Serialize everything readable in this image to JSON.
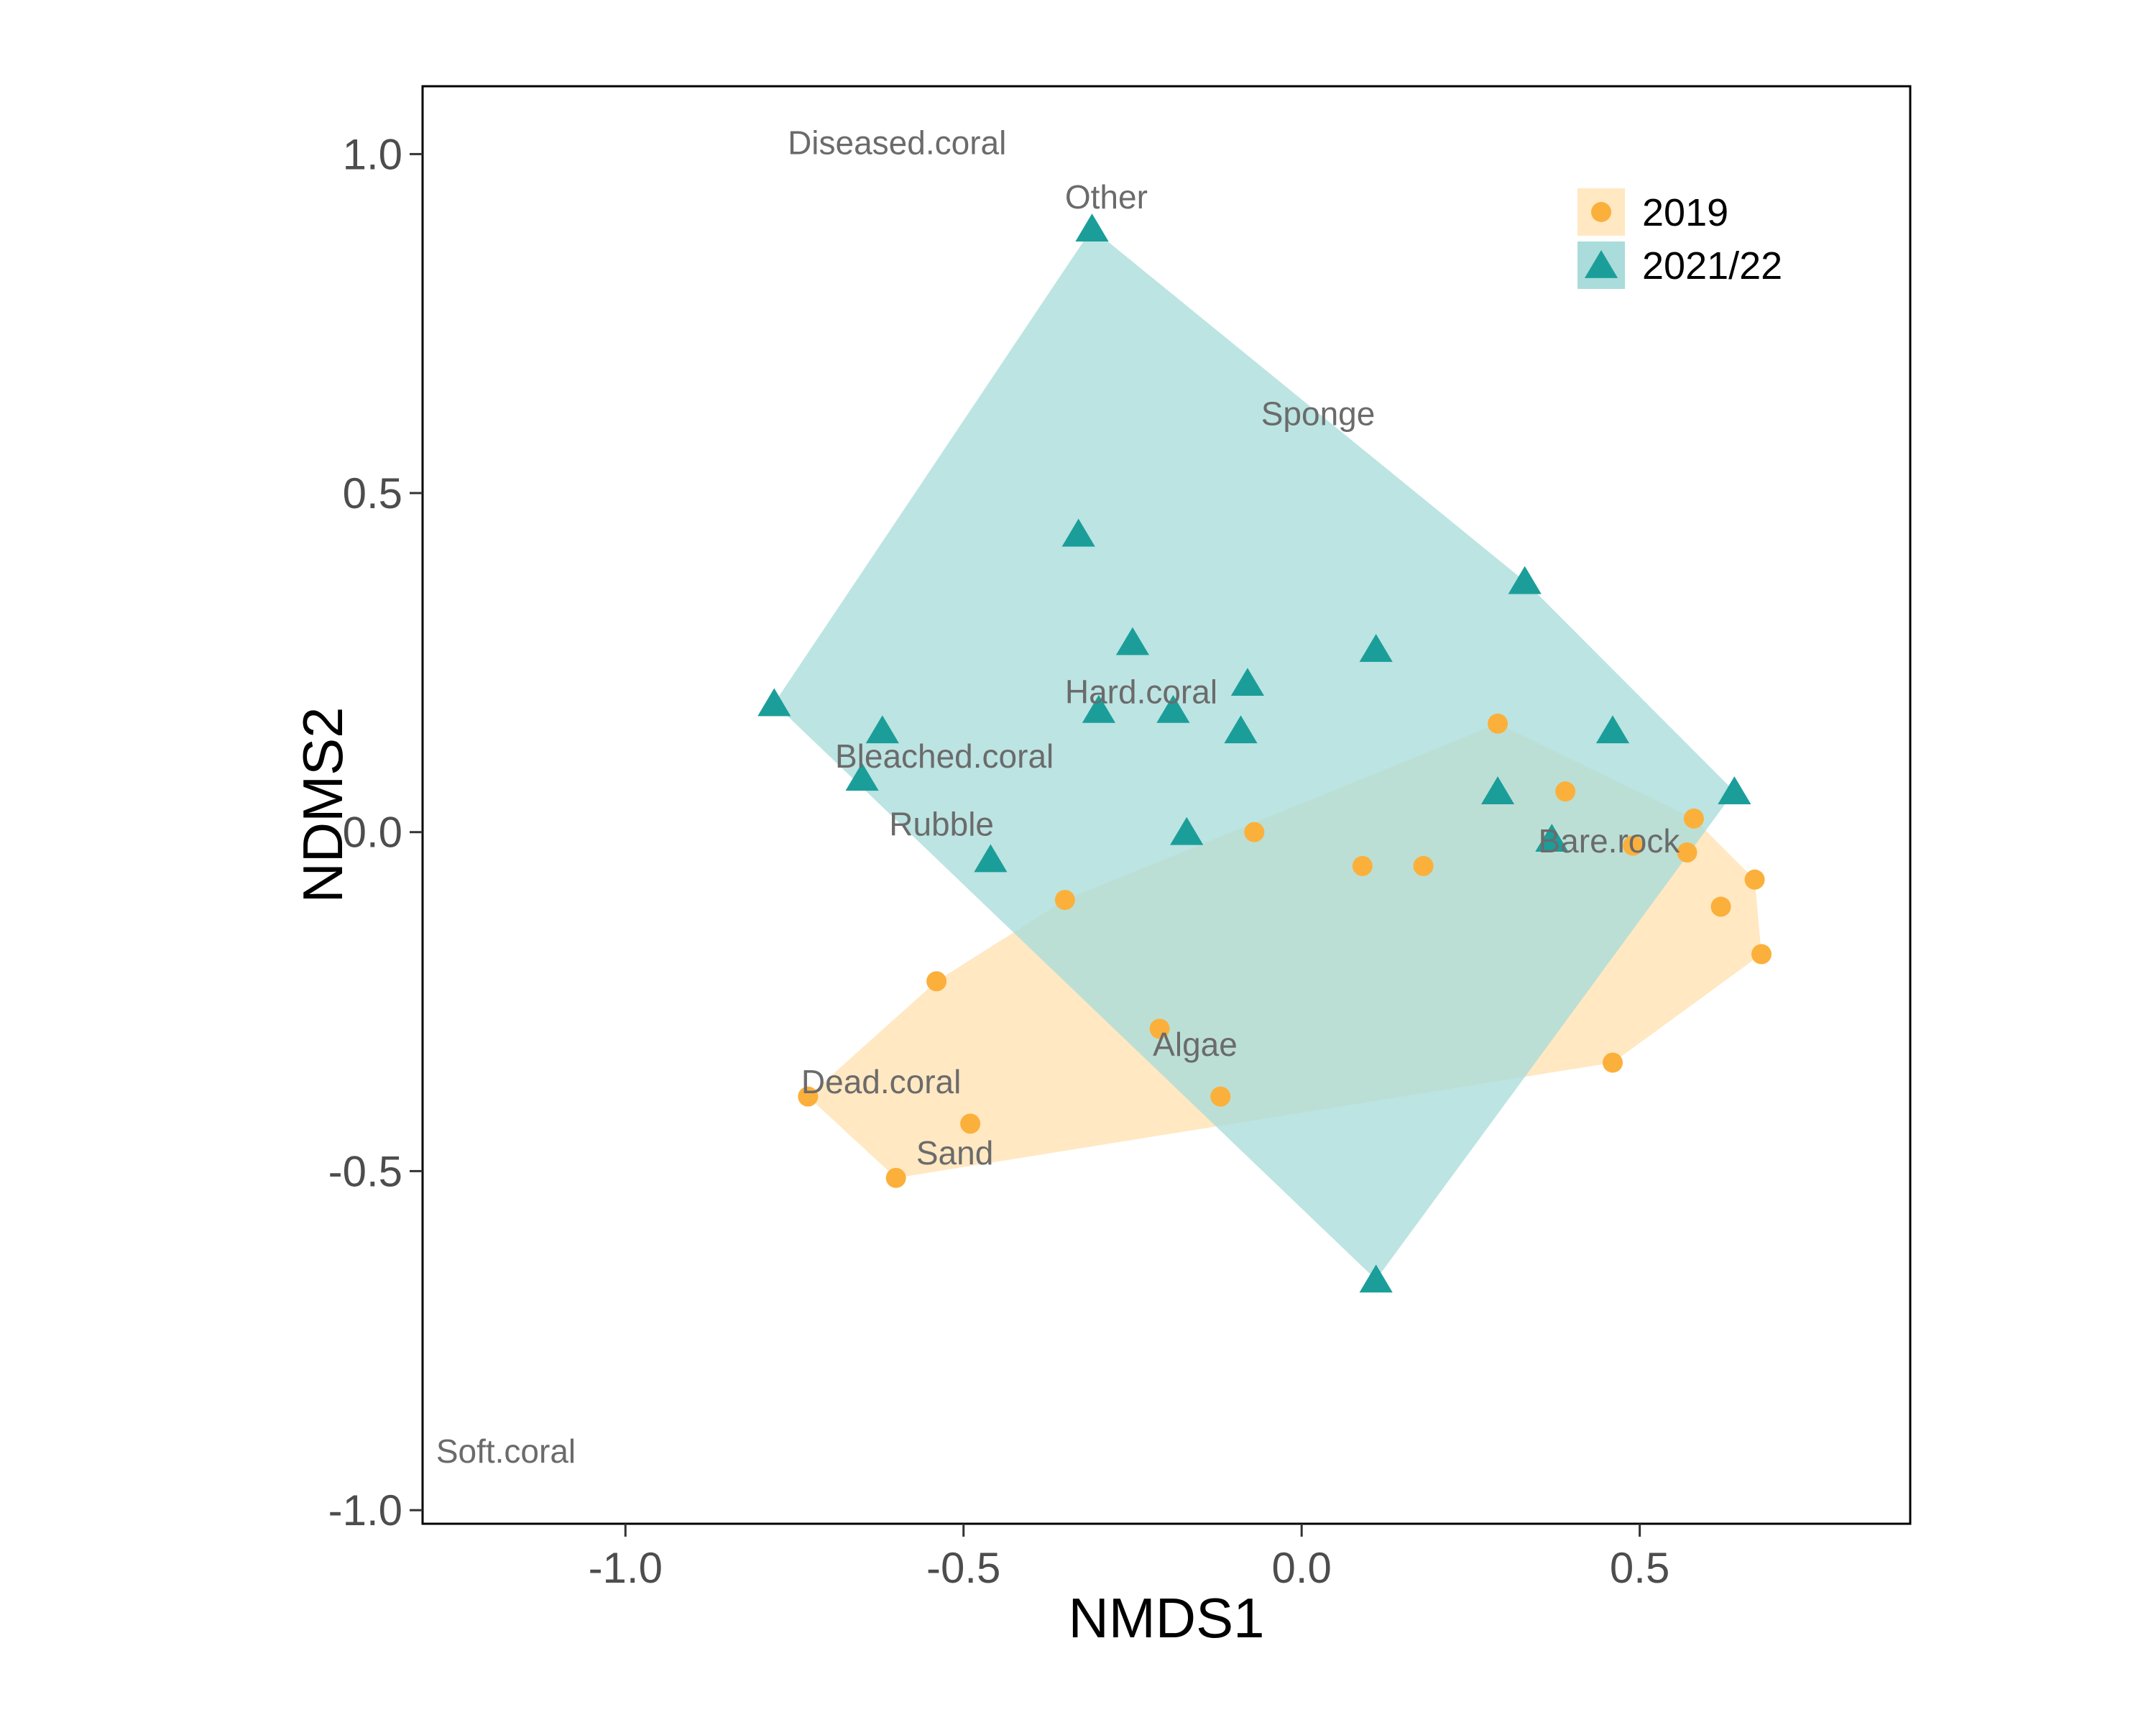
{
  "chart_data": {
    "type": "scatter",
    "xlabel": "NMDS1",
    "ylabel": "NDMS2",
    "xlim": [
      -1.3,
      0.9
    ],
    "ylim": [
      -1.02,
      1.1
    ],
    "x_ticks": [
      -1.0,
      -0.5,
      0.0,
      0.5
    ],
    "x_tick_labels": [
      "-1.0",
      "-0.5",
      "0.0",
      "0.5"
    ],
    "y_ticks": [
      -1.0,
      -0.5,
      0.0,
      0.5,
      1.0
    ],
    "y_tick_labels": [
      "-1.0",
      "-0.5",
      "0.0",
      "0.5",
      "1.0"
    ],
    "grid": false,
    "legend_position": "top-right",
    "series": [
      {
        "name": "2019",
        "marker": "circle",
        "color": "#FBB03B",
        "hull_fill": "#FFE8C2",
        "points": [
          [
            -0.73,
            -0.39
          ],
          [
            -0.6,
            -0.51
          ],
          [
            -0.54,
            -0.22
          ],
          [
            -0.49,
            -0.43
          ],
          [
            -0.35,
            -0.1
          ],
          [
            -0.21,
            -0.29
          ],
          [
            -0.12,
            -0.39
          ],
          [
            -0.07,
            0.0
          ],
          [
            0.09,
            -0.05
          ],
          [
            0.18,
            -0.05
          ],
          [
            0.29,
            0.16
          ],
          [
            0.39,
            0.06
          ],
          [
            0.46,
            -0.34
          ],
          [
            0.49,
            -0.02
          ],
          [
            0.57,
            -0.03
          ],
          [
            0.58,
            0.02
          ],
          [
            0.62,
            -0.11
          ],
          [
            0.67,
            -0.07
          ],
          [
            0.68,
            -0.18
          ]
        ],
        "hull": [
          [
            -0.6,
            -0.51
          ],
          [
            0.46,
            -0.34
          ],
          [
            0.68,
            -0.18
          ],
          [
            0.67,
            -0.07
          ],
          [
            0.58,
            0.02
          ],
          [
            0.29,
            0.16
          ],
          [
            -0.35,
            -0.1
          ],
          [
            -0.54,
            -0.22
          ],
          [
            -0.73,
            -0.39
          ]
        ]
      },
      {
        "name": "2021/22",
        "marker": "triangle",
        "color": "#1B9E9A",
        "hull_fill": "#A9DCDA",
        "points": [
          [
            -0.31,
            0.89
          ],
          [
            -0.33,
            0.44
          ],
          [
            -0.25,
            0.28
          ],
          [
            -0.08,
            0.22
          ],
          [
            -0.19,
            0.18
          ],
          [
            -0.09,
            0.15
          ],
          [
            -0.3,
            0.18
          ],
          [
            0.11,
            0.27
          ],
          [
            0.33,
            0.37
          ],
          [
            -0.78,
            0.19
          ],
          [
            -0.62,
            0.15
          ],
          [
            -0.65,
            0.08
          ],
          [
            -0.17,
            0.0
          ],
          [
            -0.46,
            -0.04
          ],
          [
            0.29,
            0.06
          ],
          [
            0.37,
            -0.01
          ],
          [
            0.46,
            0.15
          ],
          [
            0.64,
            0.06
          ],
          [
            0.11,
            -0.66
          ]
        ],
        "hull": [
          [
            0.11,
            -0.66
          ],
          [
            0.64,
            0.06
          ],
          [
            0.33,
            0.37
          ],
          [
            -0.31,
            0.89
          ],
          [
            -0.78,
            0.19
          ]
        ]
      }
    ],
    "annotations": [
      {
        "text": "Diseased.coral",
        "x": -0.76,
        "y": 1.0
      },
      {
        "text": "Other",
        "x": -0.35,
        "y": 0.92
      },
      {
        "text": "Sponge",
        "x": -0.06,
        "y": 0.6
      },
      {
        "text": "Hard.coral",
        "x": -0.35,
        "y": 0.19
      },
      {
        "text": "Bleached.coral",
        "x": -0.69,
        "y": 0.095
      },
      {
        "text": "Rubble",
        "x": -0.61,
        "y": -0.005
      },
      {
        "text": "Bare.rock",
        "x": 0.35,
        "y": -0.03
      },
      {
        "text": "Algae",
        "x": -0.22,
        "y": -0.33
      },
      {
        "text": "Dead.coral",
        "x": -0.74,
        "y": -0.385
      },
      {
        "text": "Sand",
        "x": -0.57,
        "y": -0.49
      },
      {
        "text": "Soft.coral",
        "x": -1.28,
        "y": -0.93
      }
    ]
  }
}
